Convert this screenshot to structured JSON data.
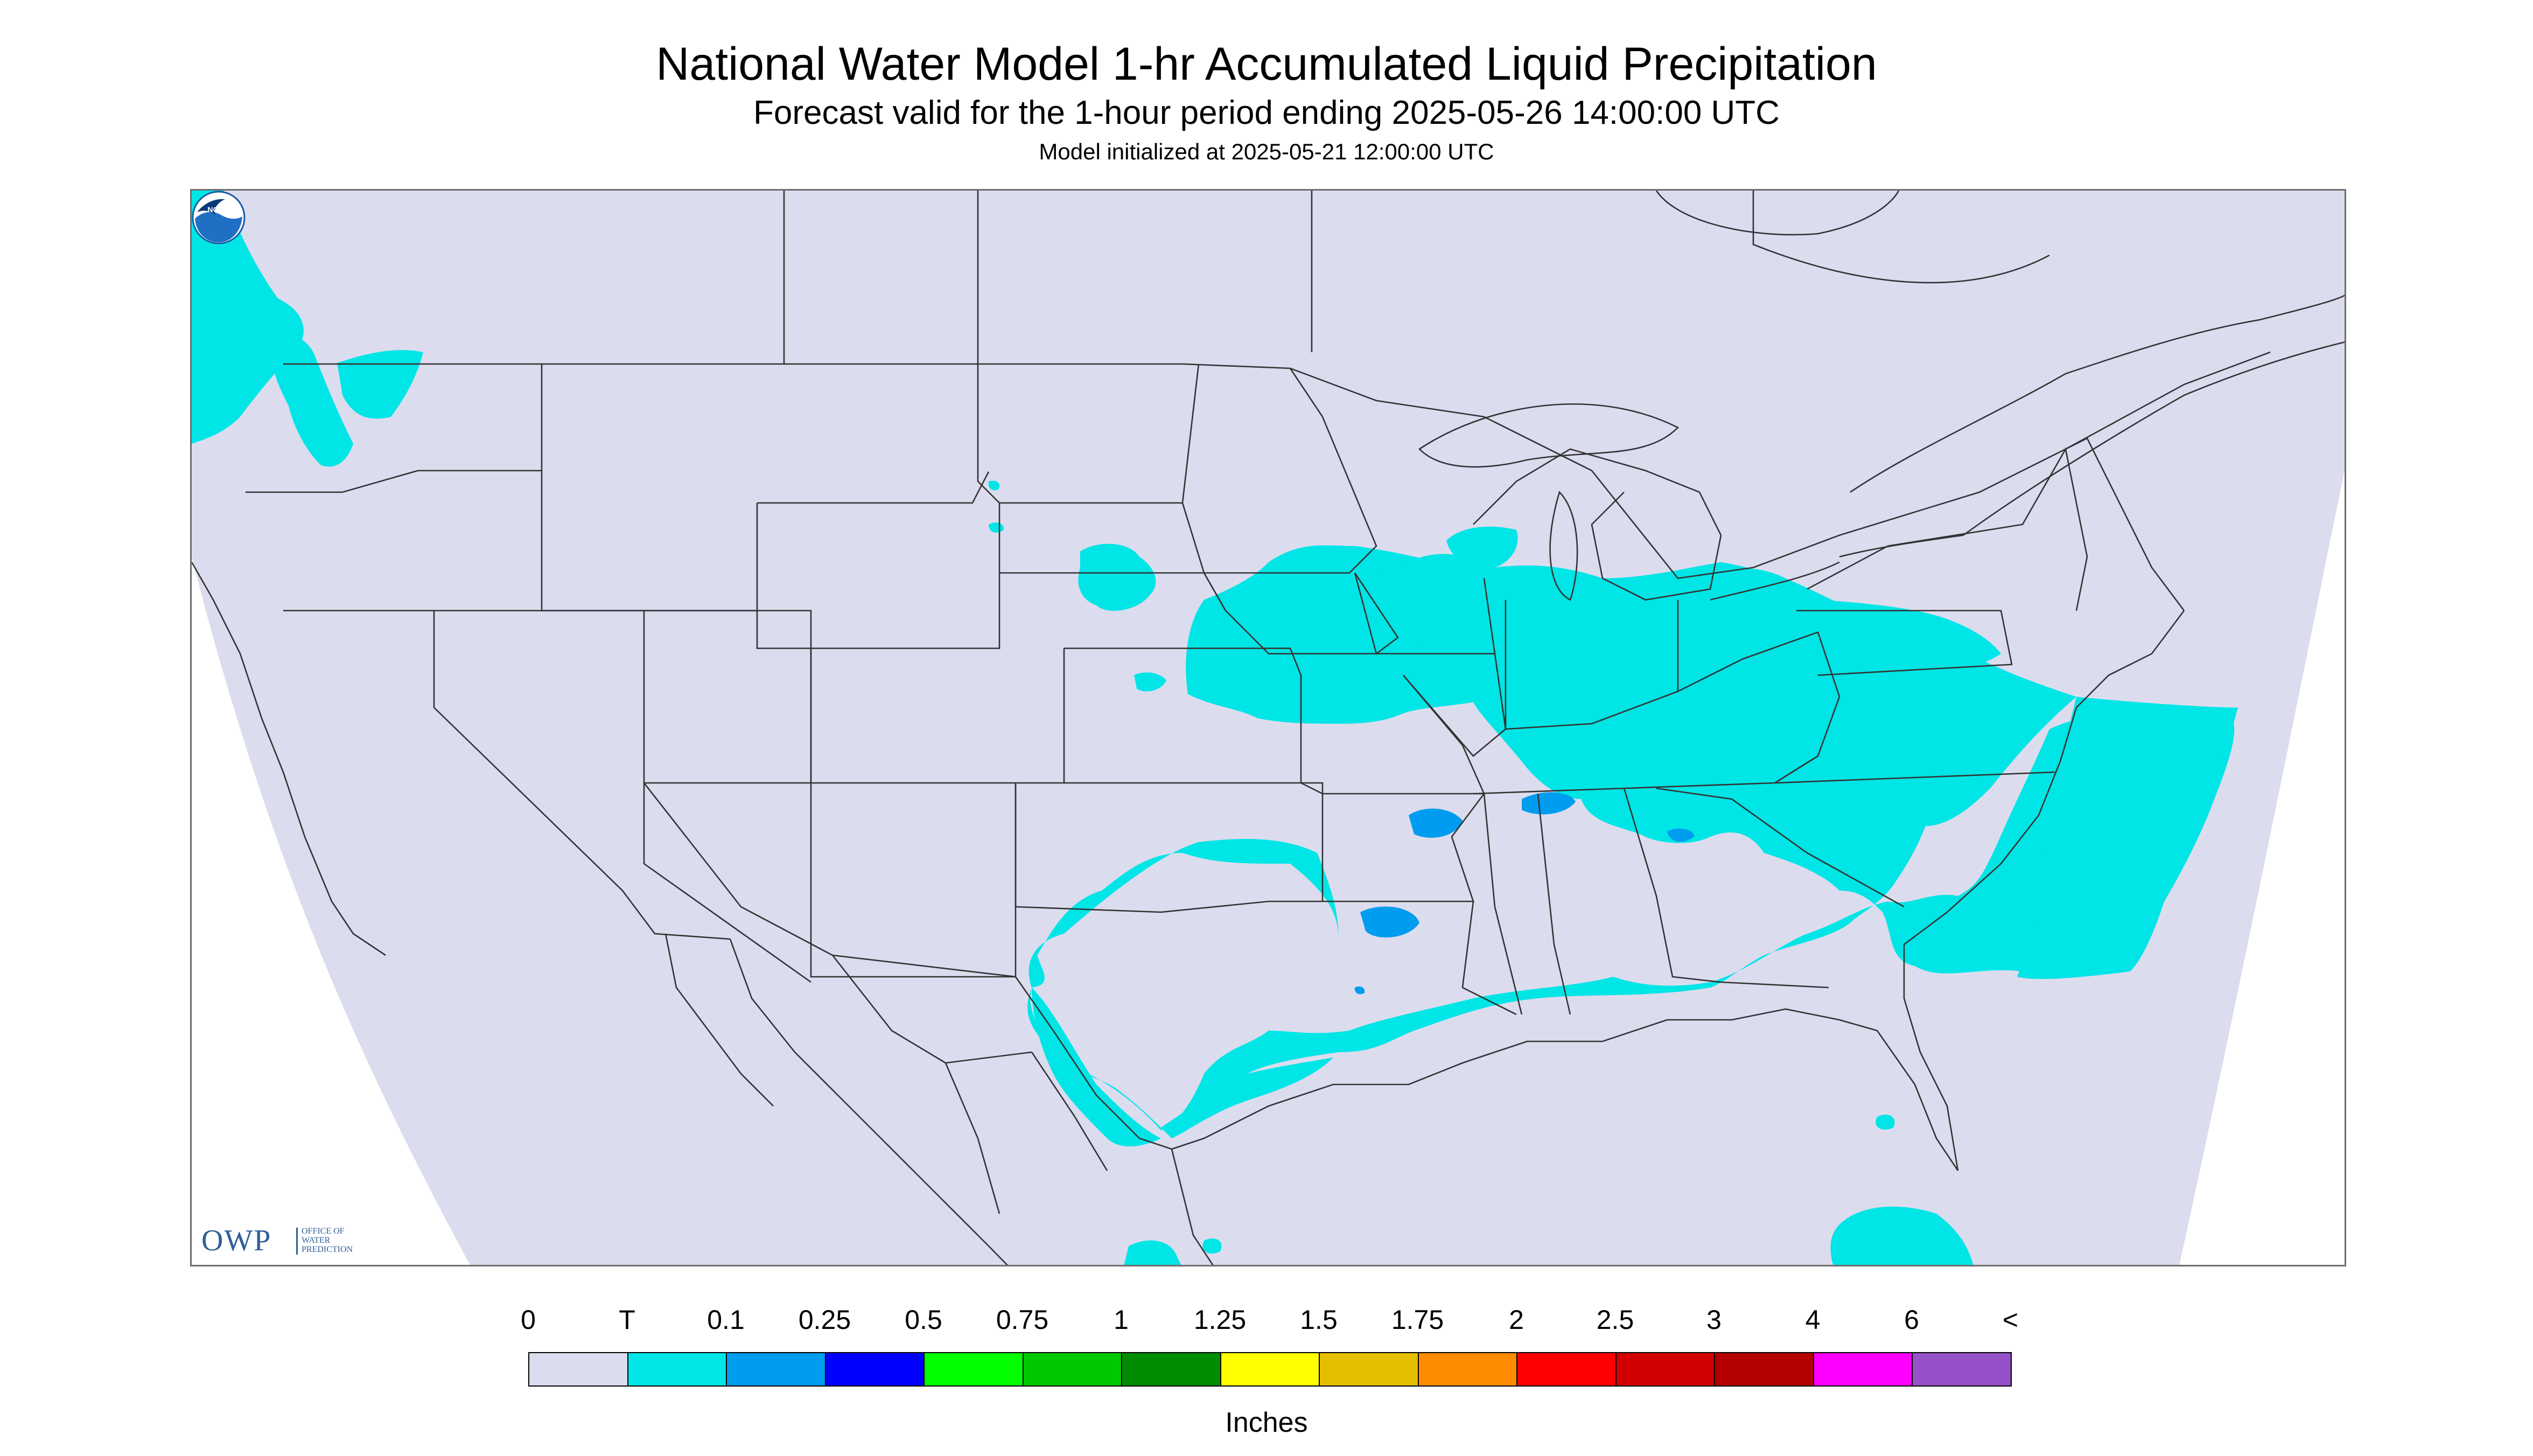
{
  "header": {
    "title": "National Water Model 1-hr Accumulated Liquid Precipitation",
    "subtitle": "Forecast valid for the 1-hour period ending 2025-05-26 14:00:00 UTC",
    "init": "Model initialized at 2025-05-21 12:00:00 UTC"
  },
  "logos": {
    "owp_abbrev": "OWP",
    "owp_line1": "OFFICE OF",
    "owp_line2": "WATER",
    "owp_line3": "PREDICTION",
    "noaa": "NOAA"
  },
  "legend": {
    "units": "Inches",
    "labels": [
      "0",
      "T",
      "0.1",
      "0.25",
      "0.5",
      "0.75",
      "1",
      "1.25",
      "1.5",
      "1.75",
      "2",
      "2.5",
      "3",
      "4",
      "6",
      "<"
    ],
    "colors": [
      "#dcdcef",
      "#00e5e5",
      "#009cef",
      "#0000ff",
      "#00ff00",
      "#00c800",
      "#008c00",
      "#ffff00",
      "#e6be00",
      "#ff8c00",
      "#ff0000",
      "#d20000",
      "#b40000",
      "#ff00ff",
      "#9650c8"
    ]
  },
  "map": {
    "background_color": "#dcdcef",
    "outside_color": "#ffffff",
    "border_color": "#333333",
    "precip_light_color": "#00e5e5",
    "precip_moderate_color": "#009cef"
  }
}
